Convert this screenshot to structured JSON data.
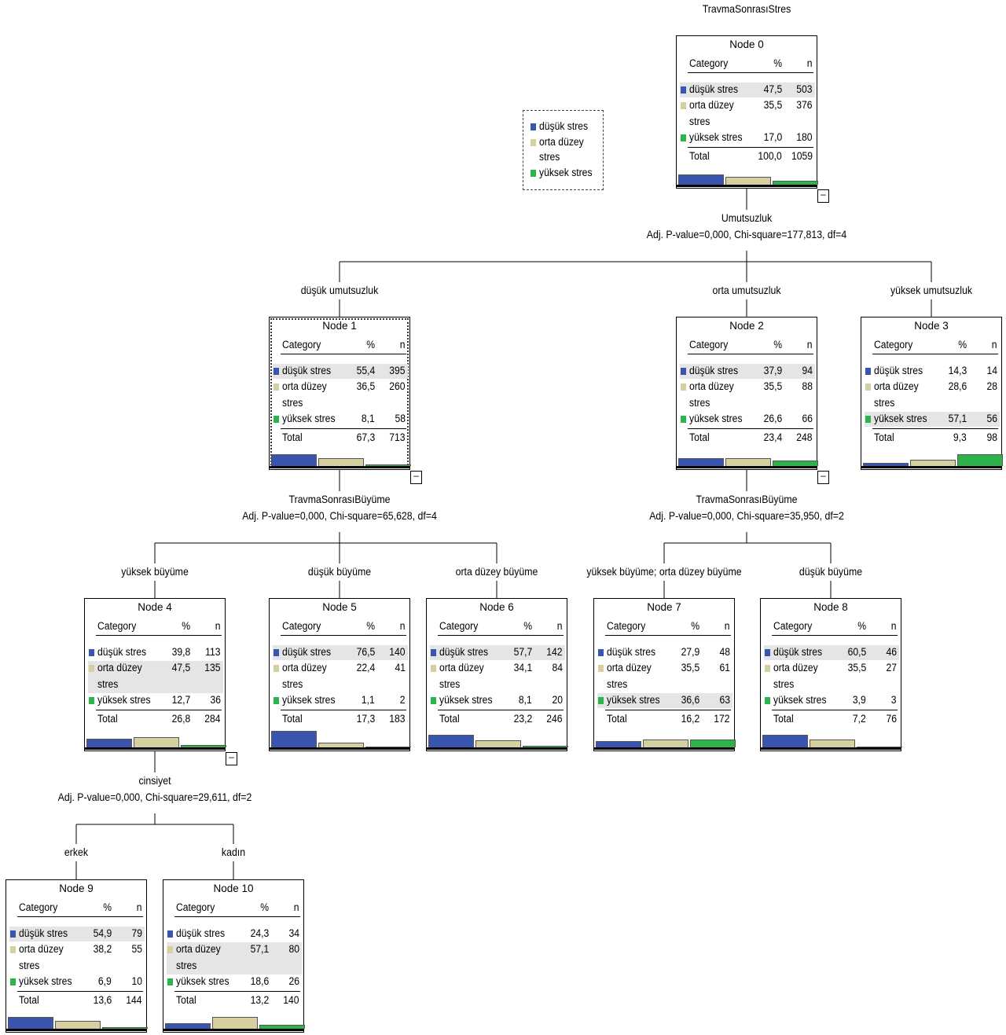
{
  "diagram_title": "TravmaSonrasıStres",
  "colors": {
    "dusuk": "#3a55b0",
    "orta": "#d6cfa0",
    "yuksek": "#2cb34a"
  },
  "legend": {
    "items": [
      {
        "label": "düşük stres",
        "color_key": "dusuk"
      },
      {
        "label_lines": [
          "orta düzey",
          "stres"
        ],
        "color_key": "orta"
      },
      {
        "label": "yüksek stres",
        "color_key": "yuksek"
      }
    ]
  },
  "table_headers": {
    "category": "Category",
    "pct": "%",
    "n": "n"
  },
  "category_labels": {
    "dusuk": "düşük stres",
    "orta_line1": "orta düzey",
    "orta_line2": "stres",
    "yuksek": "yüksek stres",
    "total": "Total"
  },
  "nodes": [
    {
      "id": "Node 0",
      "rows": [
        [
          "47,5",
          "503"
        ],
        [
          "35,5",
          "376"
        ],
        [
          "17,0",
          "180"
        ]
      ],
      "total": [
        "100,0",
        "1059"
      ],
      "highlight": 0,
      "selected": false,
      "collapse": true
    },
    {
      "id": "Node 1",
      "rows": [
        [
          "55,4",
          "395"
        ],
        [
          "36,5",
          "260"
        ],
        [
          "8,1",
          "58"
        ]
      ],
      "total": [
        "67,3",
        "713"
      ],
      "highlight": 0,
      "selected": true,
      "collapse": true
    },
    {
      "id": "Node 2",
      "rows": [
        [
          "37,9",
          "94"
        ],
        [
          "35,5",
          "88"
        ],
        [
          "26,6",
          "66"
        ]
      ],
      "total": [
        "23,4",
        "248"
      ],
      "highlight": 0,
      "selected": false,
      "collapse": true
    },
    {
      "id": "Node 3",
      "rows": [
        [
          "14,3",
          "14"
        ],
        [
          "28,6",
          "28"
        ],
        [
          "57,1",
          "56"
        ]
      ],
      "total": [
        "9,3",
        "98"
      ],
      "highlight": 2,
      "selected": false,
      "collapse": false
    },
    {
      "id": "Node 4",
      "rows": [
        [
          "39,8",
          "113"
        ],
        [
          "47,5",
          "135"
        ],
        [
          "12,7",
          "36"
        ]
      ],
      "total": [
        "26,8",
        "284"
      ],
      "highlight": 1,
      "selected": false,
      "collapse": true
    },
    {
      "id": "Node 5",
      "rows": [
        [
          "76,5",
          "140"
        ],
        [
          "22,4",
          "41"
        ],
        [
          "1,1",
          "2"
        ]
      ],
      "total": [
        "17,3",
        "183"
      ],
      "highlight": 0,
      "selected": false,
      "collapse": false
    },
    {
      "id": "Node 6",
      "rows": [
        [
          "57,7",
          "142"
        ],
        [
          "34,1",
          "84"
        ],
        [
          "8,1",
          "20"
        ]
      ],
      "total": [
        "23,2",
        "246"
      ],
      "highlight": 0,
      "selected": false,
      "collapse": false
    },
    {
      "id": "Node 7",
      "rows": [
        [
          "27,9",
          "48"
        ],
        [
          "35,5",
          "61"
        ],
        [
          "36,6",
          "63"
        ]
      ],
      "total": [
        "16,2",
        "172"
      ],
      "highlight": 2,
      "selected": false,
      "collapse": false
    },
    {
      "id": "Node 8",
      "rows": [
        [
          "60,5",
          "46"
        ],
        [
          "35,5",
          "27"
        ],
        [
          "3,9",
          "3"
        ]
      ],
      "total": [
        "7,2",
        "76"
      ],
      "highlight": 0,
      "selected": false,
      "collapse": false
    },
    {
      "id": "Node 9",
      "rows": [
        [
          "54,9",
          "79"
        ],
        [
          "38,2",
          "55"
        ],
        [
          "6,9",
          "10"
        ]
      ],
      "total": [
        "13,6",
        "144"
      ],
      "highlight": 0,
      "selected": false,
      "collapse": false
    },
    {
      "id": "Node 10",
      "rows": [
        [
          "24,3",
          "34"
        ],
        [
          "57,1",
          "80"
        ],
        [
          "18,6",
          "26"
        ]
      ],
      "total": [
        "13,2",
        "140"
      ],
      "highlight": 1,
      "selected": false,
      "collapse": false
    }
  ],
  "splits": [
    {
      "parent": "Node 0",
      "variable": "Umutsuzluk",
      "stats": "Adj. P-value=0,000, Chi-square=177,813, df=4"
    },
    {
      "parent": "Node 1",
      "variable": "TravmaSonrasıBüyüme",
      "stats": "Adj. P-value=0,000, Chi-square=65,628, df=4"
    },
    {
      "parent": "Node 2",
      "variable": "TravmaSonrasıBüyüme",
      "stats": "Adj. P-value=0,000, Chi-square=35,950, df=2"
    },
    {
      "parent": "Node 4",
      "variable": "cinsiyet",
      "stats": "Adj. P-value=0,000, Chi-square=29,611, df=2"
    }
  ],
  "branches": [
    {
      "child": "Node 1",
      "label": "düşük umutsuzluk"
    },
    {
      "child": "Node 2",
      "label": "orta umutsuzluk"
    },
    {
      "child": "Node 3",
      "label": "yüksek umutsuzluk"
    },
    {
      "child": "Node 4",
      "label": "yüksek büyüme"
    },
    {
      "child": "Node 5",
      "label": "düşük büyüme"
    },
    {
      "child": "Node 6",
      "label": "orta düzey büyüme"
    },
    {
      "child": "Node 7",
      "label": "yüksek büyüme; orta düzey büyüme"
    },
    {
      "child": "Node 8",
      "label": "düşük büyüme"
    },
    {
      "child": "Node 9",
      "label": "erkek"
    },
    {
      "child": "Node 10",
      "label": "kadın"
    }
  ]
}
